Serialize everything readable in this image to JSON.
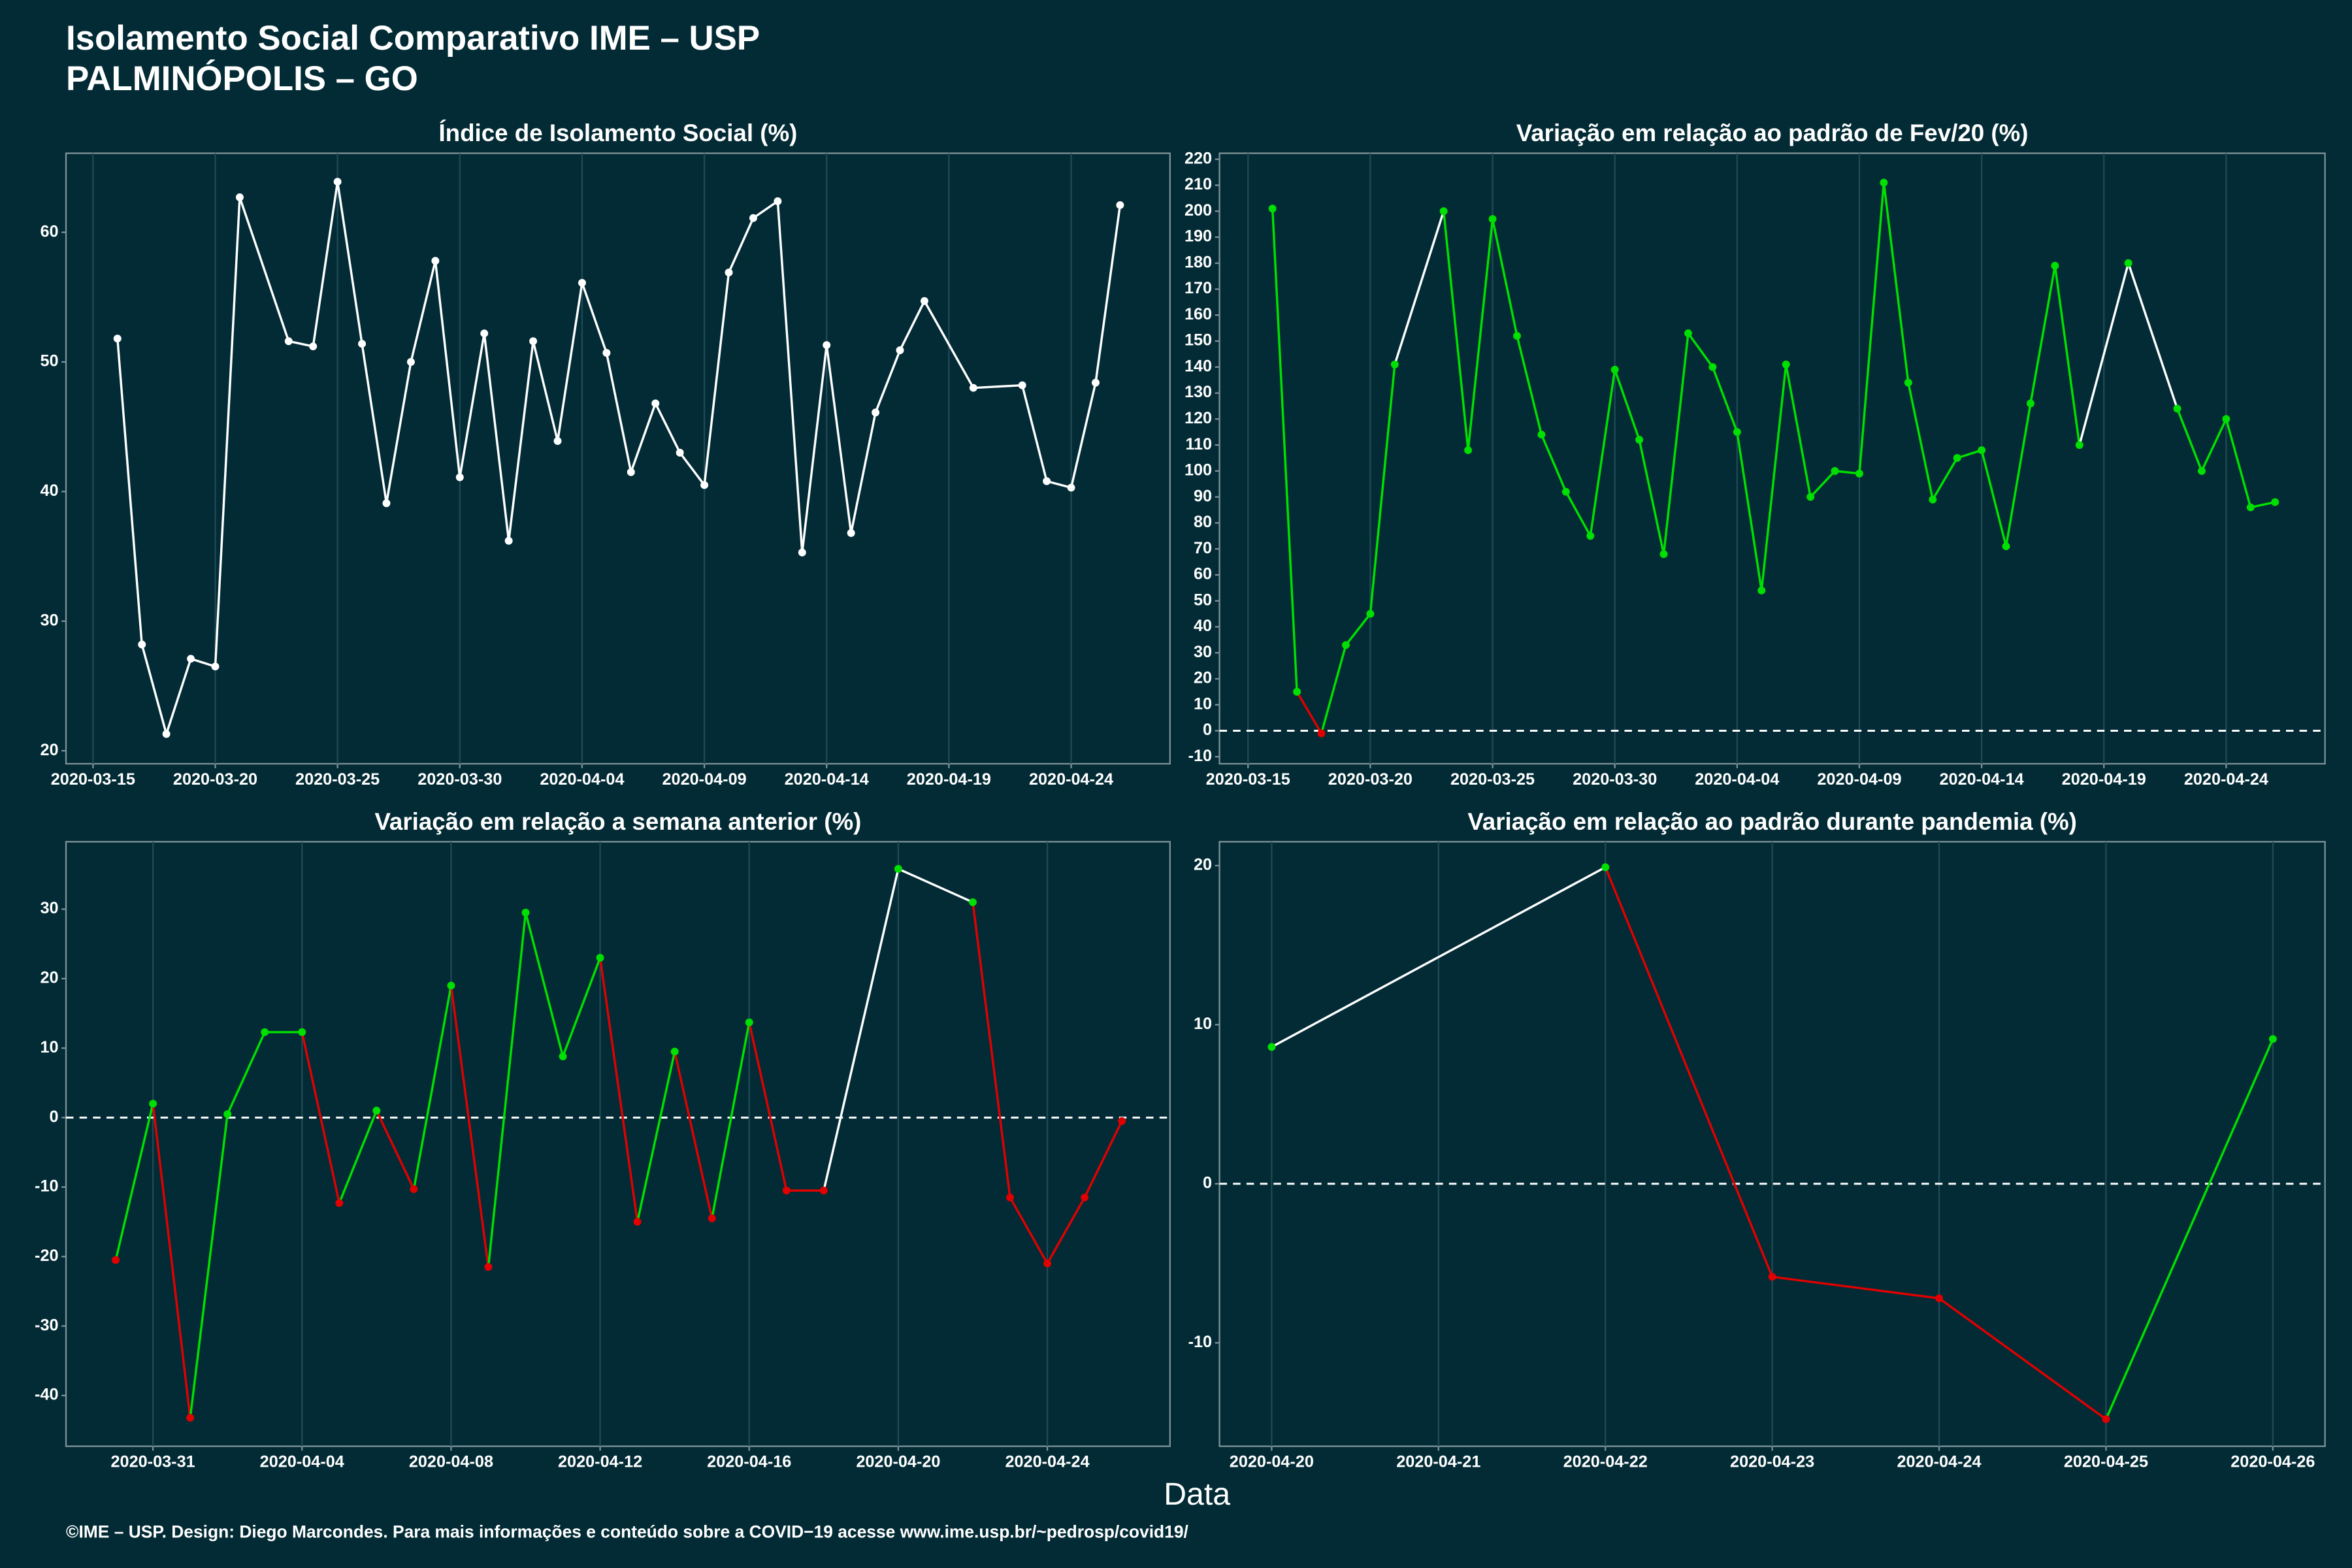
{
  "title": "Isolamento Social Comparativo IME – USP",
  "subtitle": "PALMINÓPOLIS – GO",
  "xlabel": "Data",
  "footer": "©IME – USP. Design: Diego Marcondes. Para mais informações e conteúdo sobre a COVID−19 acesse www.ime.usp.br/~pedrosp/covid19/",
  "chart_data": [
    {
      "type": "line",
      "title": "Índice de Isolamento Social (%)",
      "color": "#ffffff",
      "x": [
        "2020-03-16",
        "2020-03-17",
        "2020-03-18",
        "2020-03-19",
        "2020-03-20",
        "2020-03-21",
        "2020-03-23",
        "2020-03-24",
        "2020-03-25",
        "2020-03-26",
        "2020-03-27",
        "2020-03-28",
        "2020-03-29",
        "2020-03-30",
        "2020-03-31",
        "2020-04-01",
        "2020-04-02",
        "2020-04-03",
        "2020-04-04",
        "2020-04-05",
        "2020-04-06",
        "2020-04-07",
        "2020-04-08",
        "2020-04-09",
        "2020-04-10",
        "2020-04-11",
        "2020-04-12",
        "2020-04-13",
        "2020-04-14",
        "2020-04-15",
        "2020-04-16",
        "2020-04-17",
        "2020-04-18",
        "2020-04-20",
        "2020-04-22",
        "2020-04-23",
        "2020-04-24",
        "2020-04-25",
        "2020-04-26"
      ],
      "values": [
        51.8,
        28.2,
        21.3,
        27.1,
        26.5,
        62.7,
        51.6,
        51.2,
        63.9,
        51.4,
        39.1,
        50.0,
        57.8,
        41.1,
        52.2,
        36.2,
        51.6,
        43.9,
        56.1,
        50.7,
        41.5,
        46.8,
        43.0,
        40.5,
        56.9,
        61.1,
        62.4,
        35.3,
        51.3,
        36.8,
        46.1,
        50.9,
        54.7,
        48.0,
        48.2,
        40.8,
        40.3,
        48.4,
        62.1
      ],
      "xlim": [
        "2020-03-13T21:30",
        "2020-04-28T01:00"
      ],
      "ylim": [
        19,
        66.1
      ],
      "xticks": [
        "2020-03-15",
        "2020-03-20",
        "2020-03-25",
        "2020-03-30",
        "2020-04-04",
        "2020-04-09",
        "2020-04-14",
        "2020-04-19",
        "2020-04-24"
      ],
      "yticks": [
        20,
        30,
        40,
        50,
        60
      ],
      "grid": true
    },
    {
      "type": "line",
      "title": "Variação em relação ao padrão de Fev/20 (%)",
      "positive_color": "#00e000",
      "negative_color": "#e00000",
      "gap_color": "#ffffff",
      "hline": 0,
      "x": [
        "2020-03-16",
        "2020-03-17",
        "2020-03-18",
        "2020-03-19",
        "2020-03-20",
        "2020-03-21",
        "2020-03-23",
        "2020-03-24",
        "2020-03-25",
        "2020-03-26",
        "2020-03-27",
        "2020-03-28",
        "2020-03-29",
        "2020-03-30",
        "2020-03-31",
        "2020-04-01",
        "2020-04-02",
        "2020-04-03",
        "2020-04-04",
        "2020-04-05",
        "2020-04-06",
        "2020-04-07",
        "2020-04-08",
        "2020-04-09",
        "2020-04-10",
        "2020-04-11",
        "2020-04-12",
        "2020-04-13",
        "2020-04-14",
        "2020-04-15",
        "2020-04-16",
        "2020-04-17",
        "2020-04-18",
        "2020-04-20",
        "2020-04-22",
        "2020-04-23",
        "2020-04-24",
        "2020-04-25",
        "2020-04-26"
      ],
      "values": [
        201,
        15,
        -1,
        33,
        45,
        141,
        200,
        108,
        197,
        152,
        114,
        92,
        75,
        139,
        112,
        68,
        153,
        140,
        115,
        54,
        141,
        90,
        100,
        99,
        211,
        134,
        89,
        105,
        108,
        71,
        126,
        179,
        110,
        180,
        124,
        100,
        120,
        86,
        88
      ],
      "xlim": [
        "2020-03-13T20:00",
        "2020-04-28T01:00"
      ],
      "ylim": [
        -12.7,
        222.3
      ],
      "xticks": [
        "2020-03-15",
        "2020-03-20",
        "2020-03-25",
        "2020-03-30",
        "2020-04-04",
        "2020-04-09",
        "2020-04-14",
        "2020-04-19",
        "2020-04-24"
      ],
      "yticks": [
        -10,
        0,
        10,
        20,
        30,
        40,
        50,
        60,
        70,
        80,
        90,
        100,
        110,
        120,
        130,
        140,
        150,
        160,
        170,
        180,
        190,
        200,
        210,
        220
      ],
      "grid": true
    },
    {
      "type": "line",
      "title": "Variação em relação a semana anterior (%)",
      "positive_color": "#00e000",
      "negative_color": "#e00000",
      "gap_color": "#ffffff",
      "hline": 0,
      "x": [
        "2020-03-30",
        "2020-03-31",
        "2020-04-01",
        "2020-04-02",
        "2020-04-03",
        "2020-04-04",
        "2020-04-05",
        "2020-04-06",
        "2020-04-07",
        "2020-04-08",
        "2020-04-09",
        "2020-04-10",
        "2020-04-11",
        "2020-04-12",
        "2020-04-13",
        "2020-04-14",
        "2020-04-15",
        "2020-04-16",
        "2020-04-17",
        "2020-04-18",
        "2020-04-20",
        "2020-04-22",
        "2020-04-23",
        "2020-04-24",
        "2020-04-25",
        "2020-04-26"
      ],
      "values": [
        -20.5,
        2,
        -43.2,
        0.5,
        12.3,
        12.3,
        -12.3,
        1,
        -10.3,
        19,
        -21.5,
        29.5,
        8.8,
        23,
        -15,
        9.5,
        -14.5,
        13.7,
        -10.5,
        -10.5,
        35.8,
        31,
        -11.5,
        -21,
        -11.5,
        -0.5
      ],
      "xlim": [
        "2020-03-28T16:00",
        "2020-04-27T07:00"
      ],
      "ylim": [
        -47.3,
        39.7
      ],
      "xticks": [
        "2020-03-31",
        "2020-04-04",
        "2020-04-08",
        "2020-04-12",
        "2020-04-16",
        "2020-04-20",
        "2020-04-24"
      ],
      "yticks": [
        -40,
        -30,
        -20,
        -10,
        0,
        10,
        20,
        30
      ],
      "grid": true
    },
    {
      "type": "line",
      "title": "Variação em relação ao padrão durante pandemia (%)",
      "positive_color": "#00e000",
      "negative_color": "#e00000",
      "gap_color": "#ffffff",
      "hline": 0,
      "x": [
        "2020-04-20",
        "2020-04-22",
        "2020-04-23",
        "2020-04-24",
        "2020-04-25",
        "2020-04-26"
      ],
      "values": [
        8.6,
        19.9,
        -5.85,
        -7.2,
        -14.8,
        9.1
      ],
      "xlim": [
        "2020-04-19T16:30",
        "2020-04-26T07:30"
      ],
      "ylim": [
        -16.5,
        21.5
      ],
      "xticks": [
        "2020-04-20",
        "2020-04-21",
        "2020-04-22",
        "2020-04-23",
        "2020-04-24",
        "2020-04-25",
        "2020-04-26"
      ],
      "yticks": [
        -10,
        0,
        10,
        20
      ],
      "grid": true
    }
  ]
}
